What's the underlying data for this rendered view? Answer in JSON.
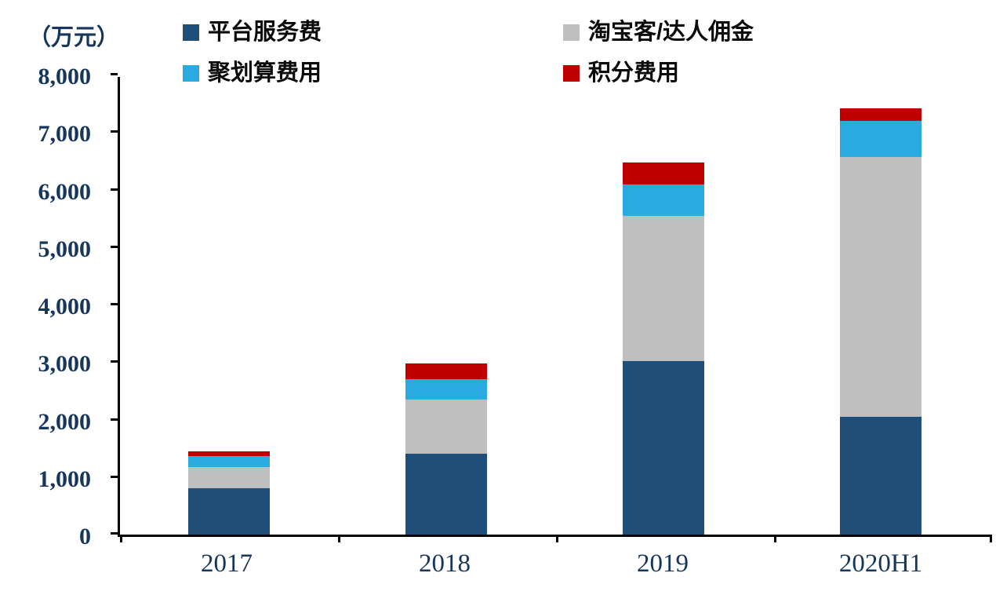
{
  "chart_data": {
    "type": "bar",
    "stacked": true,
    "unit_label": "（万元）",
    "title": "",
    "xlabel": "",
    "ylabel": "万元",
    "categories": [
      "2017",
      "2018",
      "2019",
      "2020H1"
    ],
    "series": [
      {
        "name": "平台服务费",
        "color": "#1F4E79",
        "values": [
          800,
          1400,
          3020,
          2050
        ]
      },
      {
        "name": "淘宝客/达人佣金",
        "color": "#BFBFBF",
        "values": [
          380,
          950,
          2520,
          4520
        ]
      },
      {
        "name": "聚划算费用",
        "color": "#29ABE2",
        "values": [
          180,
          350,
          550,
          620
        ]
      },
      {
        "name": "积分费用",
        "color": "#C00000",
        "values": [
          90,
          270,
          380,
          230
        ]
      }
    ],
    "ylim": [
      0,
      8000
    ],
    "ytick_step": 1000,
    "ytick_labels": [
      "0",
      "1,000",
      "2,000",
      "3,000",
      "4,000",
      "5,000",
      "6,000",
      "7,000",
      "8,000"
    ],
    "legend_position": "top",
    "grid": false,
    "axis_color": "#000000",
    "axis_text_color": "#16365C"
  }
}
